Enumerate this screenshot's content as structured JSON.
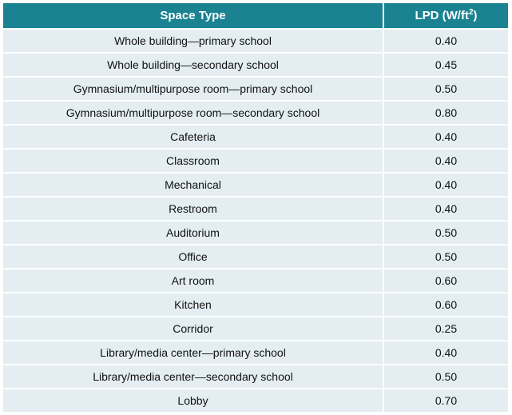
{
  "table": {
    "header": {
      "space_type": "Space Type",
      "lpd_prefix": "LPD (W/ft",
      "lpd_sup": "2",
      "lpd_suffix": ")"
    },
    "rows": [
      {
        "space": "Whole building—primary school",
        "lpd": "0.40"
      },
      {
        "space": "Whole building—secondary school",
        "lpd": "0.45"
      },
      {
        "space": "Gymnasium/multipurpose room—primary school",
        "lpd": "0.50"
      },
      {
        "space": "Gymnasium/multipurpose room—secondary school",
        "lpd": "0.80"
      },
      {
        "space": "Cafeteria",
        "lpd": "0.40"
      },
      {
        "space": "Classroom",
        "lpd": "0.40"
      },
      {
        "space": "Mechanical",
        "lpd": "0.40"
      },
      {
        "space": "Restroom",
        "lpd": "0.40"
      },
      {
        "space": "Auditorium",
        "lpd": "0.50"
      },
      {
        "space": "Office",
        "lpd": "0.50"
      },
      {
        "space": "Art room",
        "lpd": "0.60"
      },
      {
        "space": "Kitchen",
        "lpd": "0.60"
      },
      {
        "space": "Corridor",
        "lpd": "0.25"
      },
      {
        "space": "Library/media center—primary school",
        "lpd": "0.40"
      },
      {
        "space": "Library/media center—secondary school",
        "lpd": "0.50"
      },
      {
        "space": "Lobby",
        "lpd": "0.70"
      }
    ]
  },
  "colors": {
    "header_bg": "#1a8291",
    "row_bg": "#e4edf1"
  }
}
